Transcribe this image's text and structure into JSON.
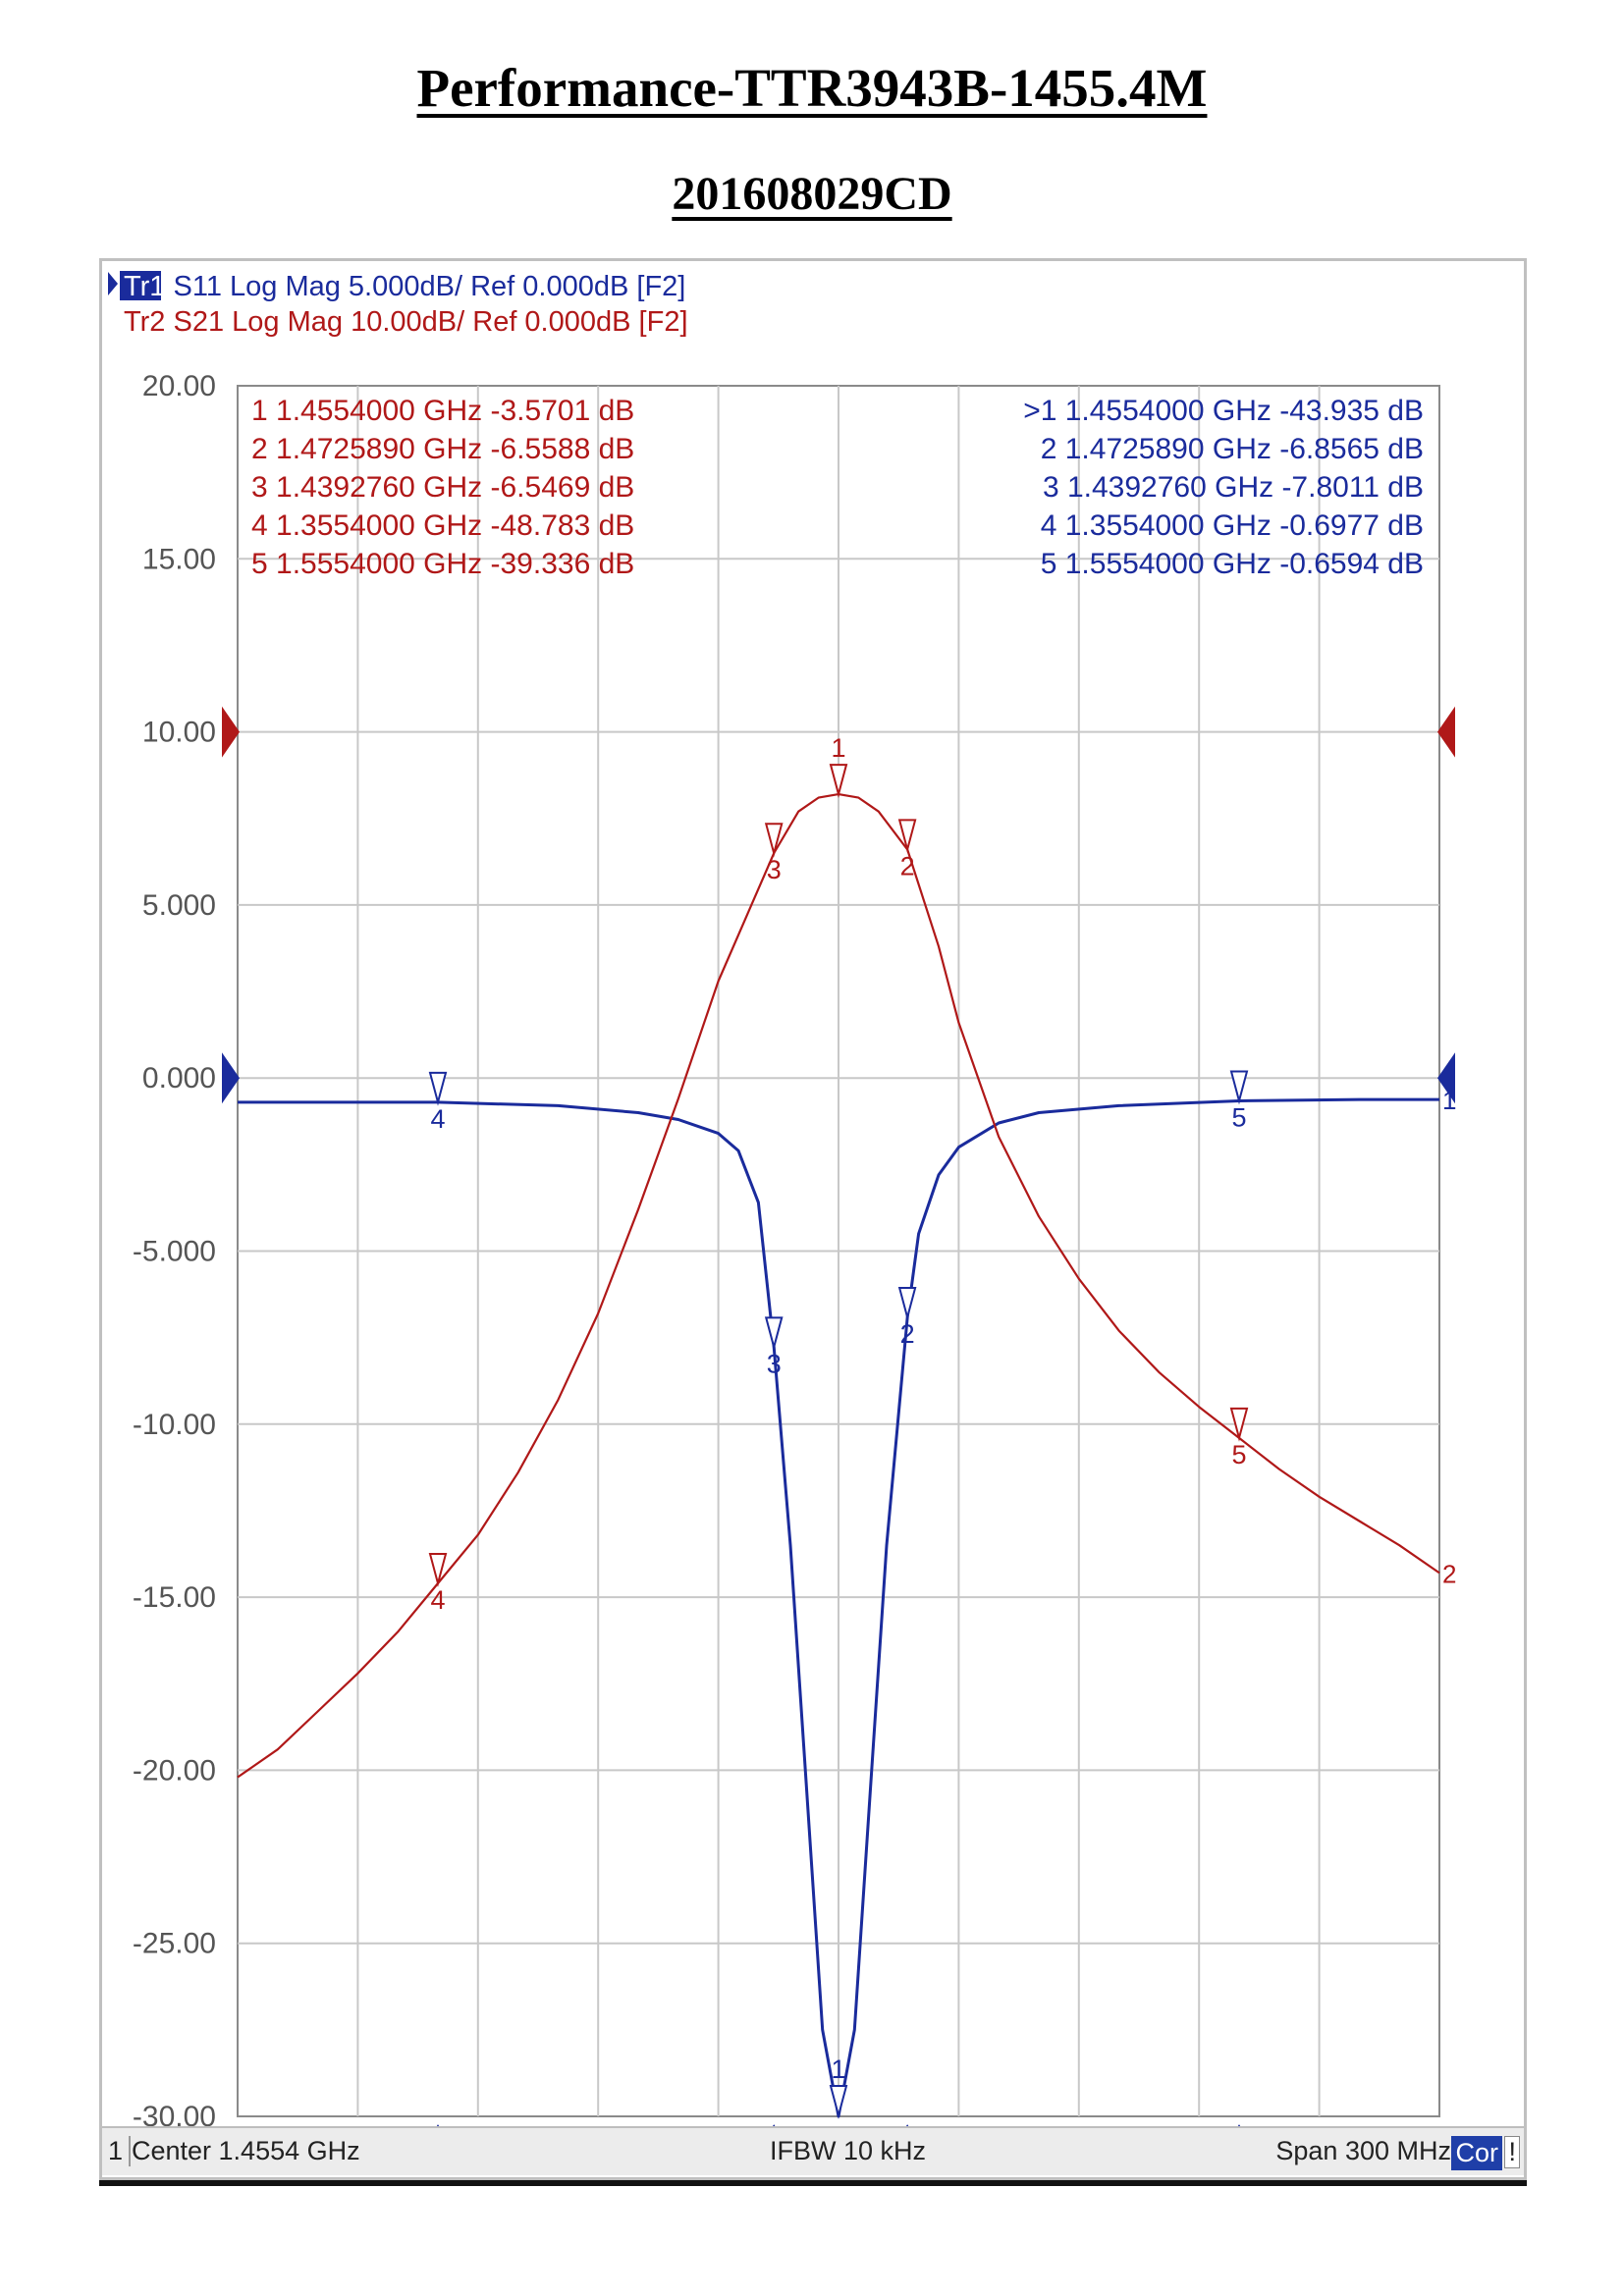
{
  "document": {
    "title": "Performance-TTR3943B-1455.4M",
    "subtitle": "201608029CD"
  },
  "analyzer": {
    "traces": [
      {
        "id": "Tr1",
        "param": "S11",
        "format": "Log Mag",
        "scale": "5.000dB/",
        "ref": "Ref 0.000dB",
        "window": "[F2]",
        "color": "#1a2b9c",
        "active": true
      },
      {
        "id": "Tr2",
        "param": "S21",
        "format": "Log Mag",
        "scale": "10.00dB/",
        "ref": "Ref 0.000dB",
        "window": "[F2]",
        "color": "#b01818",
        "active": false
      }
    ],
    "status": {
      "channel": "1",
      "center": "Center 1.4554 GHz",
      "ifbw": "IFBW 10 kHz",
      "span": "Span 300 MHz",
      "cor": "Cor",
      "flag": "!"
    }
  },
  "chart_data": {
    "type": "line",
    "x_unit": "GHz",
    "xlim": [
      1.3054,
      1.6054
    ],
    "ylim": [
      -30,
      20
    ],
    "y_ticks": [
      "20.00",
      "15.00",
      "10.00",
      "5.000",
      "0.000",
      "-5.000",
      "-10.00",
      "-15.00",
      "-20.00",
      "-25.00",
      "-30.00"
    ],
    "grid": true,
    "series": [
      {
        "name": "S11",
        "color": "#1a2b9c",
        "x": [
          1.3054,
          1.3254,
          1.3554,
          1.3854,
          1.4054,
          1.4154,
          1.4254,
          1.4304,
          1.4354,
          1.4393,
          1.4434,
          1.4474,
          1.4514,
          1.4554,
          1.4594,
          1.4634,
          1.4674,
          1.4726,
          1.4754,
          1.4804,
          1.4854,
          1.4954,
          1.5054,
          1.5254,
          1.5554,
          1.5854,
          1.6054
        ],
        "y": [
          -0.7,
          -0.7,
          -0.7,
          -0.8,
          -1.0,
          -1.2,
          -1.6,
          -2.1,
          -3.6,
          -7.8,
          -13.5,
          -20.5,
          -27.5,
          -30.0,
          -27.5,
          -20.5,
          -13.5,
          -6.9,
          -4.5,
          -2.8,
          -2.0,
          -1.3,
          -1.0,
          -0.8,
          -0.66,
          -0.62,
          -0.62
        ]
      },
      {
        "name": "S21",
        "color": "#b01818",
        "x": [
          1.3054,
          1.3154,
          1.3254,
          1.3354,
          1.3454,
          1.3554,
          1.3654,
          1.3754,
          1.3854,
          1.3954,
          1.4054,
          1.4154,
          1.4254,
          1.4393,
          1.4454,
          1.4504,
          1.4554,
          1.4604,
          1.4654,
          1.4726,
          1.4804,
          1.4854,
          1.4954,
          1.5054,
          1.5154,
          1.5254,
          1.5354,
          1.5454,
          1.5554,
          1.5654,
          1.5754,
          1.5854,
          1.5954,
          1.6054
        ],
        "y": [
          -20.2,
          -19.4,
          -18.3,
          -17.2,
          -16.0,
          -14.6,
          -13.2,
          -11.4,
          -9.3,
          -6.8,
          -3.8,
          -0.6,
          2.8,
          6.5,
          7.7,
          8.1,
          8.2,
          8.1,
          7.7,
          6.6,
          3.8,
          1.6,
          -1.7,
          -4.0,
          -5.8,
          -7.3,
          -8.5,
          -9.5,
          -10.4,
          -11.3,
          -12.1,
          -12.8,
          -13.5,
          -14.3
        ]
      }
    ],
    "markers": [
      {
        "n": "1",
        "x": 1.4554,
        "x_text": "1.4554000 GHz",
        "s21": "-3.5701 dB",
        "s11": "-43.935 dB",
        "s11_active": true
      },
      {
        "n": "2",
        "x": 1.472589,
        "x_text": "1.4725890 GHz",
        "s21": "-6.5588 dB",
        "s11": "-6.8565 dB",
        "s11_active": false
      },
      {
        "n": "3",
        "x": 1.439276,
        "x_text": "1.4392760 GHz",
        "s21": "-6.5469 dB",
        "s11": "-7.8011 dB",
        "s11_active": false
      },
      {
        "n": "4",
        "x": 1.3554,
        "x_text": "1.3554000 GHz",
        "s21": "-48.783 dB",
        "s11": "-0.6977 dB",
        "s11_active": false
      },
      {
        "n": "5",
        "x": 1.5554,
        "x_text": "1.5554000 GHz",
        "s21": "-39.336 dB",
        "s11": "-0.6594 dB",
        "s11_active": false
      }
    ]
  }
}
